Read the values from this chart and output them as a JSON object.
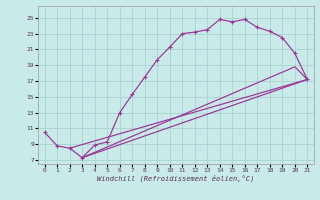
{
  "xlabel": "Windchill (Refroidissement éolien,°C)",
  "background_color": "#c8eae8",
  "grid_color": "#a8d4d2",
  "line_color": "#993399",
  "xlim": [
    -0.5,
    21.5
  ],
  "ylim": [
    6.5,
    26.5
  ],
  "xticks": [
    0,
    1,
    2,
    3,
    4,
    5,
    6,
    7,
    8,
    9,
    10,
    11,
    12,
    13,
    14,
    15,
    16,
    17,
    18,
    19,
    20,
    21
  ],
  "yticks": [
    7,
    9,
    11,
    13,
    15,
    17,
    19,
    21,
    23,
    25
  ],
  "main_x": [
    0,
    1,
    2,
    3,
    4,
    5,
    6,
    7,
    8,
    9,
    10,
    11,
    12,
    13,
    14,
    15,
    16,
    17,
    18,
    19,
    20,
    21
  ],
  "main_y": [
    10.5,
    8.8,
    8.5,
    7.3,
    8.9,
    9.3,
    13.0,
    15.3,
    17.5,
    19.7,
    21.3,
    23.0,
    23.2,
    23.5,
    24.8,
    24.5,
    24.8,
    23.8,
    23.3,
    22.5,
    20.5,
    17.2
  ],
  "line1_x": [
    2,
    21
  ],
  "line1_y": [
    8.5,
    17.2
  ],
  "line2_x": [
    3,
    21
  ],
  "line2_y": [
    7.3,
    17.2
  ],
  "line3_x": [
    3,
    20,
    21
  ],
  "line3_y": [
    7.3,
    18.8,
    17.2
  ]
}
